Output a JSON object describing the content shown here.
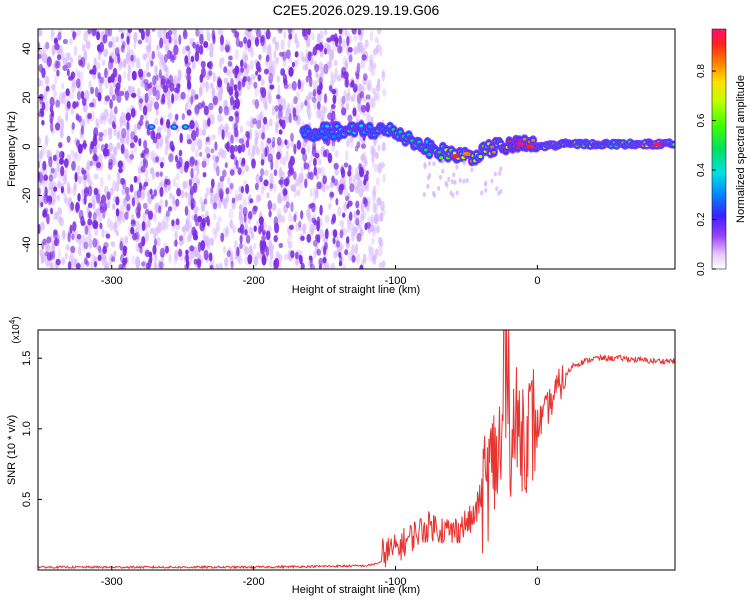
{
  "title": "C2E5.2026.029.19.19.G06",
  "colors": {
    "snr_line": "#e8332f",
    "spectrogram_dot": "#7b2be0",
    "spectrogram_faint": "#d8b8ff",
    "frame": "#000000"
  },
  "chart_data": [
    {
      "type": "heatmap",
      "name": "spectrogram",
      "xlabel": "Height of straight line (km)",
      "ylabel": "Frequency (Hz)",
      "xlim": [
        -352,
        97
      ],
      "ylim": [
        -50,
        48
      ],
      "x_ticks": [
        -300,
        -200,
        -100,
        0
      ],
      "y_ticks": [
        -40,
        -20,
        0,
        20,
        40
      ],
      "noise_band_x": [
        -352,
        -112
      ],
      "ridge": [
        {
          "x": -165,
          "f": 5,
          "a": 0.25
        },
        {
          "x": -150,
          "f": 6,
          "a": 0.3
        },
        {
          "x": -135,
          "f": 6,
          "a": 0.4
        },
        {
          "x": -120,
          "f": 7,
          "a": 0.35
        },
        {
          "x": -100,
          "f": 6,
          "a": 0.45
        },
        {
          "x": -90,
          "f": 3,
          "a": 0.5
        },
        {
          "x": -80,
          "f": 0,
          "a": 0.45
        },
        {
          "x": -70,
          "f": -2,
          "a": 0.5
        },
        {
          "x": -60,
          "f": -3,
          "a": 0.7
        },
        {
          "x": -50,
          "f": -4,
          "a": 0.75
        },
        {
          "x": -40,
          "f": -3,
          "a": 0.7
        },
        {
          "x": -30,
          "f": 0,
          "a": 0.8
        },
        {
          "x": -20,
          "f": 0,
          "a": 0.9
        },
        {
          "x": -10,
          "f": 1,
          "a": 0.95
        },
        {
          "x": 0,
          "f": 0,
          "a": 0.85
        },
        {
          "x": 20,
          "f": 1,
          "a": 0.6
        },
        {
          "x": 40,
          "f": 1,
          "a": 0.55
        },
        {
          "x": 60,
          "f": 1,
          "a": 0.55
        },
        {
          "x": 80,
          "f": 1,
          "a": 0.85
        },
        {
          "x": 95,
          "f": 1,
          "a": 0.6
        }
      ],
      "colorbar": {
        "label": "Normalized spectral amplitude",
        "ticks": [
          0.0,
          0.2,
          0.4,
          0.6,
          0.8
        ],
        "tick_labels": [
          "0.0",
          "0.2",
          "0.4",
          "0.6",
          "0.8"
        ],
        "range": [
          0,
          0.97
        ]
      }
    },
    {
      "type": "line",
      "name": "snr",
      "xlabel": "Height of straight line (km)",
      "ylabel": "SNR (10 * v/v)",
      "exponent_label": "(x10",
      "exponent_sup": "4",
      "exponent_close": ")",
      "xlim": [
        -352,
        97
      ],
      "ylim": [
        0,
        1.7
      ],
      "x_ticks": [
        -300,
        -200,
        -100,
        0
      ],
      "y_ticks": [
        0.5,
        1.0,
        1.5
      ],
      "y_tick_labels": [
        "0.5",
        "1.0",
        "1.5"
      ],
      "envelope": [
        {
          "x": -352,
          "y": 0.02
        },
        {
          "x": -200,
          "y": 0.02
        },
        {
          "x": -120,
          "y": 0.03
        },
        {
          "x": -100,
          "y": 0.08
        },
        {
          "x": -85,
          "y": 0.2
        },
        {
          "x": -75,
          "y": 0.25
        },
        {
          "x": -60,
          "y": 0.2
        },
        {
          "x": -45,
          "y": 0.3
        },
        {
          "x": -35,
          "y": 0.6
        },
        {
          "x": -25,
          "y": 0.85
        },
        {
          "x": -15,
          "y": 0.95
        },
        {
          "x": -5,
          "y": 0.95
        },
        {
          "x": 5,
          "y": 1.1
        },
        {
          "x": 15,
          "y": 1.3
        },
        {
          "x": 25,
          "y": 1.45
        },
        {
          "x": 40,
          "y": 1.5
        },
        {
          "x": 60,
          "y": 1.5
        },
        {
          "x": 80,
          "y": 1.48
        },
        {
          "x": 97,
          "y": 1.48
        }
      ]
    }
  ]
}
